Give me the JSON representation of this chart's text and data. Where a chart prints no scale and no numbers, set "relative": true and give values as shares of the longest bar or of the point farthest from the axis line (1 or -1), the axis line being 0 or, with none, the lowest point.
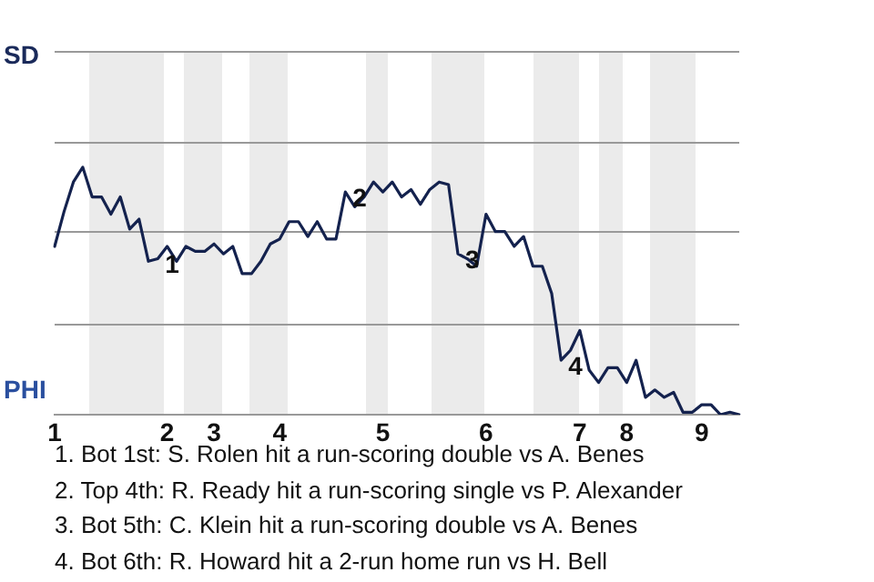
{
  "chart_data": {
    "type": "line",
    "relative": true,
    "categories": [
      "1",
      null,
      null,
      null,
      null,
      null,
      null,
      null,
      null,
      null,
      null,
      null,
      "2",
      null,
      null,
      null,
      null,
      "3",
      null,
      null,
      null,
      null,
      null,
      null,
      "4",
      null,
      null,
      null,
      null,
      null,
      null,
      null,
      null,
      null,
      null,
      "5",
      null,
      null,
      null,
      null,
      null,
      null,
      null,
      null,
      null,
      null,
      "6",
      null,
      null,
      null,
      null,
      null,
      null,
      null,
      null,
      null,
      "7",
      null,
      null,
      null,
      null,
      "8",
      null,
      null,
      null,
      null,
      null,
      null,
      null,
      "9",
      null,
      null,
      null,
      null
    ],
    "series": [
      {
        "color": "#14224e",
        "values": [
          0.68,
          0.82,
          0.94,
          1,
          0.88,
          0.88,
          0.81,
          0.88,
          0.75,
          0.79,
          0.62,
          0.63,
          0.68,
          0.62,
          0.68,
          0.66,
          0.66,
          0.69,
          0.65,
          0.68,
          0.57,
          0.57,
          0.62,
          0.69,
          0.71,
          0.78,
          0.78,
          0.72,
          0.78,
          0.71,
          0.71,
          0.9,
          0.84,
          0.88,
          0.94,
          0.9,
          0.94,
          0.88,
          0.91,
          0.85,
          0.91,
          0.94,
          0.93,
          0.65,
          0.63,
          0.6,
          0.81,
          0.74,
          0.74,
          0.68,
          0.72,
          0.6,
          0.6,
          0.49,
          0.22,
          0.26,
          0.34,
          0.18,
          0.13,
          0.19,
          0.19,
          0.13,
          0.22,
          0.07,
          0.1,
          0.07,
          0.09,
          0.01,
          0.01,
          0.04,
          0.04,
          0,
          0.01,
          0
        ]
      }
    ],
    "ref_lines": [
      {
        "axis": "y",
        "value": 0.37,
        "color": "#999999"
      },
      {
        "axis": "y",
        "value": 0.74,
        "color": "#999999"
      },
      {
        "axis": "y",
        "value": 1.1,
        "color": "#999999"
      },
      {
        "axis": "y",
        "value": 1.47,
        "color": "#999999"
      }
    ],
    "legend": false,
    "marker": "none",
    "annotations": [
      "SD",
      "PHI",
      {
        "text": "1",
        "y": 0.63
      },
      {
        "text": "2",
        "y": 0.9
      },
      {
        "text": "3",
        "y": 0.65
      },
      {
        "text": "4",
        "y": 0.22
      },
      "1. Bot 1st: S. Rolen hit a run-scoring double vs A. Benes",
      "2. Top 4th: R. Ready hit a run-scoring single vs P. Alexander",
      "3. Bot 5th: C. Klein hit a run-scoring double vs A. Benes",
      "4. Bot 6th: R. Howard hit a 2-run home run vs H. Bell"
    ]
  }
}
